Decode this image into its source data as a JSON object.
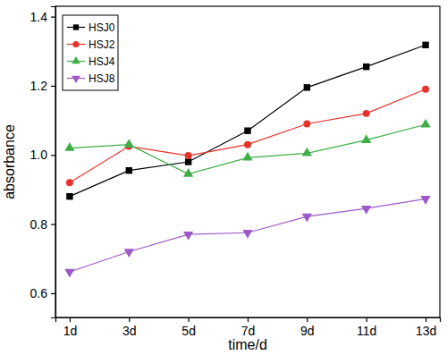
{
  "chart_data": {
    "type": "line",
    "x_label": "time/d",
    "y_label": "absorbance",
    "categories": [
      "1d",
      "3d",
      "5d",
      "7d",
      "9d",
      "11d",
      "13d"
    ],
    "series": [
      {
        "name": "HSJ0",
        "color": "#000000",
        "marker": "square",
        "values": [
          0.88,
          0.955,
          0.98,
          1.07,
          1.195,
          1.255,
          1.318
        ]
      },
      {
        "name": "HSJ2",
        "color": "#e5332a",
        "marker": "circle",
        "values": [
          0.92,
          1.025,
          0.998,
          1.03,
          1.09,
          1.12,
          1.19
        ]
      },
      {
        "name": "HSJ4",
        "color": "#3fae49",
        "marker": "triangle-up",
        "values": [
          1.02,
          1.03,
          0.945,
          0.992,
          1.005,
          1.043,
          1.088
        ]
      },
      {
        "name": "HSJ8",
        "color": "#9c5ac8",
        "marker": "triangle-down",
        "values": [
          0.662,
          0.72,
          0.77,
          0.775,
          0.822,
          0.845,
          0.873
        ]
      }
    ],
    "ylim": [
      0.53,
      1.43
    ],
    "yticks": [
      0.6,
      0.8,
      {
        "value": 1,
        "label": "1.0"
      },
      1.2,
      1.4
    ],
    "grid": false,
    "legend": "upper left"
  }
}
